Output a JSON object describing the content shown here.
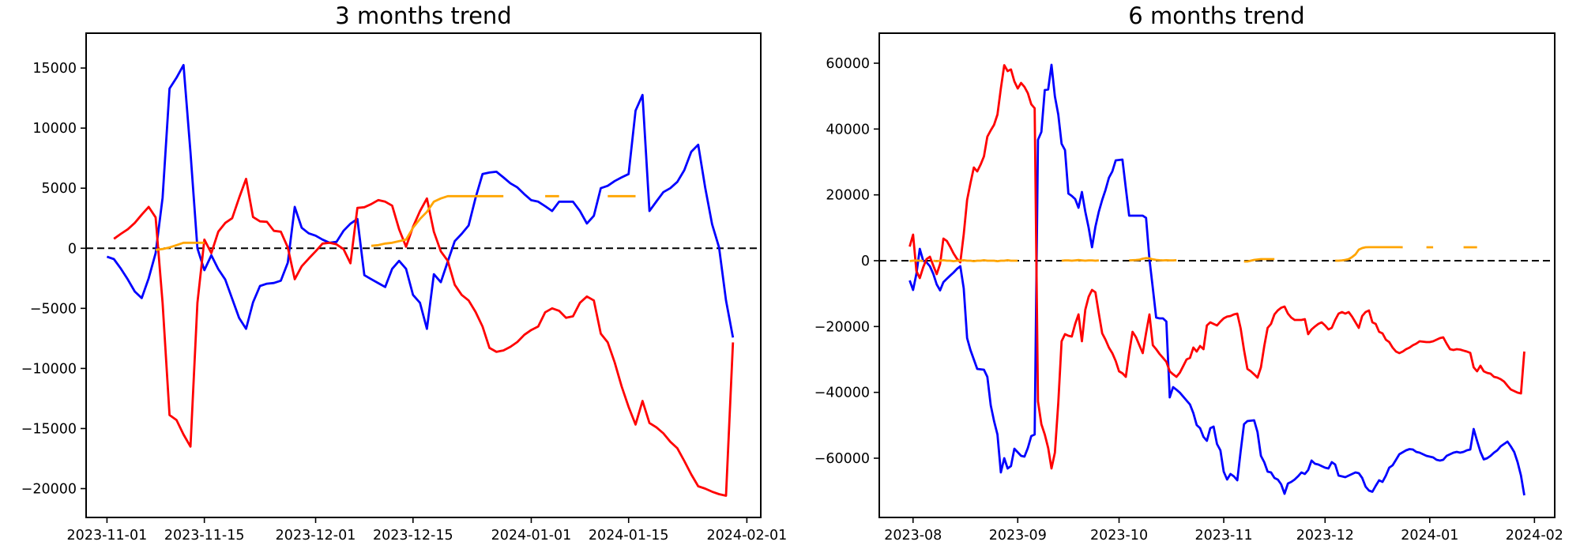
{
  "chart_data": {
    "type": "line",
    "background": "#ffffff",
    "text_color": "#000000",
    "panels": [
      {
        "title": "3 months trend",
        "x_range": [
          "2023-10-29",
          "2024-02-03"
        ],
        "y_range": [
          -22400,
          17900
        ],
        "x_ticks": [
          {
            "date": "2023-11-01",
            "label": "2023-11-01"
          },
          {
            "date": "2023-11-15",
            "label": "2023-11-15"
          },
          {
            "date": "2023-12-01",
            "label": "2023-12-01"
          },
          {
            "date": "2023-12-15",
            "label": "2023-12-15"
          },
          {
            "date": "2024-01-01",
            "label": "2024-01-01"
          },
          {
            "date": "2024-01-15",
            "label": "2024-01-15"
          },
          {
            "date": "2024-02-01",
            "label": "2024-02-01"
          }
        ],
        "y_ticks": [
          15000,
          10000,
          5000,
          0,
          -5000,
          -10000,
          -15000,
          -20000
        ],
        "annotations": [
          {
            "type": "hline",
            "y": 0,
            "style": "dashed",
            "color": "#000000"
          }
        ],
        "series": [
          {
            "name": "blue",
            "color": "#0000ff",
            "start": "2023-11-01",
            "values": [
              -700,
              -900,
              -1700,
              -2600,
              -3600,
              -4145,
              -2500,
              -400,
              4200,
              13290,
              14200,
              15250,
              8000,
              0,
              -1820,
              -580,
              -1730,
              -2600,
              -4200,
              -5800,
              -6700,
              -4500,
              -3140,
              -2950,
              -2890,
              -2700,
              -1200,
              3440,
              1710,
              1250,
              1050,
              720,
              460,
              530,
              1450,
              2040,
              2440,
              -2240,
              -2570,
              -2900,
              -3220,
              -1710,
              -1050,
              -1710,
              -3880,
              -4540,
              -6710,
              -2160,
              -2820,
              -1100,
              590,
              1200,
              1900,
              4200,
              6180,
              6300,
              6370,
              5900,
              5400,
              5070,
              4500,
              4000,
              3880,
              3500,
              3100,
              3880,
              3880,
              3880,
              3100,
              2060,
              2700,
              5000,
              5200,
              5590,
              5900,
              6180,
              11450,
              12760,
              3100,
              3900,
              4670,
              5000,
              5530,
              6500,
              8030,
              8620,
              5070,
              2000,
              70,
              -4340,
              -7430
            ]
          },
          {
            "name": "red",
            "color": "#ff0000",
            "start": "2023-11-02",
            "values": [
              790,
              1200,
              1580,
              2110,
              2800,
              3440,
              2570,
              -4540,
              -13880,
              -14300,
              -15500,
              -16500,
              -4540,
              720,
              -400,
              1380,
              2110,
              2500,
              4200,
              5780,
              2600,
              2240,
              2200,
              1450,
              1380,
              70,
              -2570,
              -1500,
              -860,
              -260,
              390,
              460,
              330,
              -70,
              -1250,
              3360,
              3420,
              3680,
              4010,
              3880,
              3550,
              1580,
              130,
              1780,
              3090,
              4150,
              1380,
              -260,
              -1050,
              -3030,
              -3880,
              -4340,
              -5300,
              -6510,
              -8290,
              -8620,
              -8500,
              -8200,
              -7800,
              -7200,
              -6800,
              -6510,
              -5330,
              -5000,
              -5200,
              -5790,
              -5660,
              -4540,
              -4010,
              -4340,
              -7110,
              -7830,
              -9500,
              -11500,
              -13200,
              -14670,
              -12700,
              -14540,
              -14900,
              -15400,
              -16100,
              -16640,
              -17700,
              -18820,
              -19800,
              -20000,
              -20260,
              -20460,
              -20590,
              -7830
            ]
          },
          {
            "name": "orange",
            "color": "#ffa500",
            "start": "2023-11-08",
            "values": [
              -130,
              -60,
              70,
              260,
              460,
              460,
              460,
              460,
              null,
              null,
              null,
              null,
              null,
              null,
              null,
              null,
              null,
              null,
              null,
              null,
              null,
              null,
              null,
              null,
              null,
              null,
              null,
              null,
              null,
              null,
              null,
              200,
              260,
              390,
              460,
              590,
              720,
              1710,
              2440,
              3030,
              3880,
              4150,
              4340,
              4340,
              4340,
              4340,
              4340,
              4340,
              4340,
              4340,
              4340,
              null,
              null,
              null,
              null,
              null,
              4340,
              4340,
              4340,
              null,
              null,
              null,
              null,
              null,
              null,
              4340,
              4340,
              4340,
              4340,
              4340
            ]
          }
        ]
      },
      {
        "title": "6 months trend",
        "x_range": [
          "2023-07-22",
          "2024-02-07"
        ],
        "y_range": [
          -78000,
          69120
        ],
        "x_ticks": [
          {
            "date": "2023-08-01",
            "label": "2023-08"
          },
          {
            "date": "2023-09-01",
            "label": "2023-09"
          },
          {
            "date": "2023-10-01",
            "label": "2023-10"
          },
          {
            "date": "2023-11-01",
            "label": "2023-11"
          },
          {
            "date": "2023-12-01",
            "label": "2023-12"
          },
          {
            "date": "2024-01-01",
            "label": "2024-01"
          },
          {
            "date": "2024-02-01",
            "label": "2024-02"
          }
        ],
        "y_ticks": [
          60000,
          40000,
          20000,
          0,
          -20000,
          -40000,
          -60000
        ],
        "annotations": [
          {
            "type": "hline",
            "y": 0,
            "style": "dashed",
            "color": "#000000"
          }
        ],
        "series": [
          {
            "name": "blue",
            "color": "#0000ff",
            "start": "2023-07-31",
            "values": [
              -6000,
              -8880,
              -4000,
              3600,
              0,
              -480,
              -1680,
              -4000,
              -7200,
              -9000,
              -6500,
              -5500,
              -4500,
              -3600,
              -2500,
              -1680,
              -8400,
              -23520,
              -27120,
              -30000,
              -32880,
              -33000,
              -33120,
              -35280,
              -43920,
              -48720,
              -52800,
              -64320,
              -60000,
              -63120,
              -62400,
              -57120,
              -58200,
              -59280,
              -59520,
              -56880,
              -53280,
              -52800,
              36720,
              39120,
              51840,
              52000,
              59520,
              49920,
              44400,
              35520,
              33600,
              20400,
              19680,
              18720,
              16080,
              20880,
              14880,
              10080,
              4080,
              10320,
              14880,
              18480,
              21500,
              25200,
              27120,
              30480,
              30600,
              30720,
              22000,
              13680,
              13680,
              13680,
              13680,
              13680,
              13000,
              480,
              -8400,
              -17280,
              -17520,
              -17520,
              -18480,
              -41520,
              -38400,
              -39200,
              -40100,
              -41300,
              -42480,
              -43680,
              -46320,
              -49920,
              -50880,
              -53520,
              -54720,
              -50880,
              -50400,
              -55680,
              -57600,
              -64080,
              -66480,
              -64800,
              -65520,
              -66720,
              -58000,
              -49680,
              -48720,
              -48600,
              -48480,
              -52080,
              -59280,
              -61200,
              -64080,
              -64320,
              -66000,
              -66500,
              -67920,
              -70800,
              -67680,
              -67200,
              -66480,
              -65500,
              -64320,
              -64800,
              -63600,
              -60720,
              -61680,
              -61920,
              -62400,
              -62880,
              -63120,
              -61200,
              -61920,
              -65280,
              -65520,
              -65760,
              -65280,
              -64800,
              -64320,
              -64560,
              -66000,
              -68640,
              -69840,
              -70200,
              -68400,
              -66720,
              -67200,
              -65280,
              -62880,
              -62160,
              -60480,
              -58800,
              -58200,
              -57600,
              -57240,
              -57360,
              -58080,
              -58320,
              -58800,
              -59280,
              -59520,
              -59760,
              -60480,
              -60720,
              -60480,
              -59280,
              -58800,
              -58320,
              -58080,
              -58320,
              -58080,
              -57600,
              -57360,
              -51120,
              -54720,
              -58080,
              -60360,
              -60000,
              -59280,
              -58320,
              -57600,
              -56400,
              -55680,
              -54960,
              -56400,
              -58100,
              -61200,
              -65280,
              -71280
            ]
          },
          {
            "name": "red",
            "color": "#ff0000",
            "start": "2023-07-31",
            "values": [
              4300,
              7920,
              -3120,
              -5280,
              -2000,
              480,
              1200,
              -1500,
              -4080,
              -1000,
              6720,
              6000,
              4200,
              2200,
              600,
              -480,
              8000,
              18480,
              23520,
              28320,
              27120,
              29200,
              31680,
              37680,
              39600,
              41280,
              44400,
              52320,
              59400,
              57600,
              58100,
              54480,
              52320,
              54000,
              52800,
              50880,
              47520,
              46320,
              -42720,
              -49680,
              -52800,
              -56880,
              -63120,
              -58320,
              -43200,
              -24480,
              -22320,
              -22800,
              -23040,
              -19200,
              -16320,
              -24480,
              -14880,
              -11000,
              -8880,
              -9600,
              -16000,
              -22080,
              -24000,
              -26400,
              -28100,
              -30480,
              -33600,
              -34200,
              -35280,
              -28000,
              -21600,
              -23200,
              -25680,
              -28080,
              -22000,
              -16320,
              -25680,
              -26880,
              -28320,
              -29500,
              -30720,
              -33600,
              -34500,
              -35280,
              -34000,
              -32000,
              -30000,
              -29520,
              -26400,
              -27600,
              -25920,
              -26880,
              -19680,
              -18720,
              -19200,
              -19680,
              -18500,
              -17520,
              -17000,
              -16800,
              -16320,
              -16080,
              -20500,
              -27120,
              -32880,
              -33600,
              -34500,
              -35520,
              -32400,
              -26000,
              -20400,
              -19200,
              -16320,
              -15100,
              -14300,
              -13920,
              -16080,
              -17280,
              -18000,
              -18000,
              -18000,
              -17760,
              -22320,
              -20880,
              -20000,
              -19200,
              -18720,
              -19680,
              -20880,
              -20400,
              -18000,
              -16080,
              -15600,
              -16080,
              -15600,
              -17000,
              -18720,
              -20400,
              -16800,
              -15600,
              -15120,
              -18720,
              -19200,
              -21600,
              -22080,
              -24000,
              -24720,
              -26400,
              -27600,
              -28080,
              -27600,
              -26880,
              -26400,
              -25680,
              -25200,
              -24480,
              -24600,
              -24720,
              -24720,
              -24480,
              -24000,
              -23520,
              -23280,
              -25200,
              -26880,
              -27120,
              -26880,
              -27000,
              -27300,
              -27600,
              -28000,
              -32400,
              -33600,
              -31920,
              -33600,
              -34080,
              -34320,
              -35280,
              -35520,
              -36000,
              -36720,
              -38000,
              -39120,
              -39600,
              -40080,
              -40320,
              -27600
            ]
          },
          {
            "name": "orange",
            "color": "#ffa500",
            "start": "2023-07-31",
            "values": [
              -100,
              0,
              100,
              0,
              -100,
              null,
              null,
              0,
              -150,
              0,
              150,
              0,
              0,
              -150,
              0,
              0,
              150,
              0,
              0,
              -150,
              0,
              0,
              150,
              0,
              0,
              0,
              -150,
              0,
              0,
              150,
              0,
              0,
              0,
              null,
              null,
              null,
              null,
              null,
              null,
              null,
              null,
              null,
              null,
              null,
              null,
              0,
              100,
              100,
              0,
              100,
              200,
              100,
              0,
              100,
              100,
              0,
              100,
              null,
              null,
              null,
              null,
              null,
              null,
              null,
              null,
              100,
              150,
              200,
              300,
              600,
              800,
              700,
              400,
              250,
              150,
              100,
              150,
              100,
              100,
              150,
              null,
              null,
              null,
              null,
              null,
              null,
              null,
              null,
              null,
              null,
              null,
              null,
              null,
              null,
              null,
              null,
              null,
              null,
              null,
              -240,
              -240,
              0,
              240,
              350,
              480,
              480,
              480,
              480,
              480,
              null,
              null,
              null,
              null,
              null,
              null,
              null,
              null,
              null,
              null,
              null,
              null,
              null,
              null,
              null,
              null,
              null,
              0,
              0,
              100,
              250,
              480,
              1100,
              1920,
              3360,
              3840,
              4080,
              4100,
              4100,
              4100,
              4100,
              4100,
              4100,
              4100,
              4100,
              4100,
              4100,
              4080,
              null,
              null,
              null,
              null,
              null,
              null,
              4080,
              4080,
              4080,
              null,
              null,
              null,
              null,
              null,
              null,
              null,
              null,
              4080,
              4080,
              4080,
              4080,
              4080
            ]
          }
        ]
      }
    ]
  }
}
